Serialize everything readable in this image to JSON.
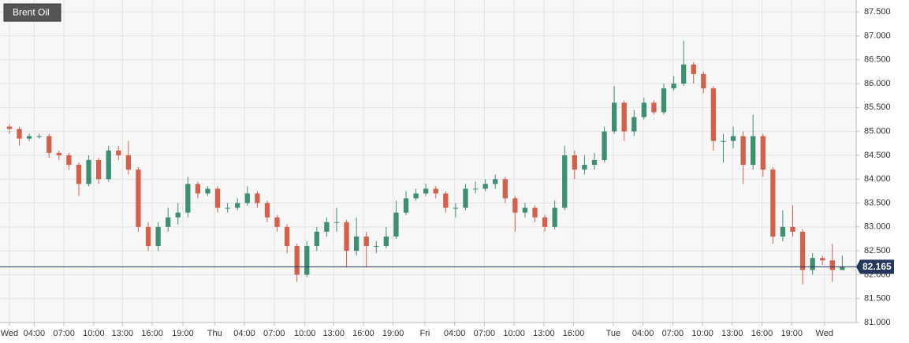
{
  "chart_data": {
    "type": "candlestick",
    "title": "Brent Oil",
    "x": [
      0,
      1,
      2,
      3,
      4,
      5,
      6,
      7,
      8,
      9,
      10,
      11,
      12,
      13,
      14,
      15,
      16,
      17,
      18,
      19,
      20,
      21,
      22,
      23,
      24,
      25,
      26,
      27,
      28,
      29,
      30,
      31,
      32,
      33,
      34,
      35,
      36,
      37,
      38,
      39,
      40,
      41,
      42,
      43,
      44,
      45,
      46,
      47,
      48,
      49,
      50,
      51,
      52,
      53,
      54,
      55,
      56,
      57,
      58,
      59,
      60,
      61,
      62,
      63,
      64,
      65,
      66,
      67,
      68,
      69,
      70,
      71,
      72,
      73,
      74,
      75,
      76,
      77,
      78,
      79,
      80,
      81,
      82,
      83,
      84
    ],
    "open": [
      85.1,
      85.05,
      84.85,
      84.9,
      84.9,
      84.55,
      84.5,
      84.3,
      83.9,
      84.4,
      84.0,
      84.6,
      84.5,
      84.2,
      83.0,
      82.6,
      83.0,
      83.2,
      83.3,
      83.9,
      83.7,
      83.8,
      83.4,
      83.4,
      83.5,
      83.7,
      83.5,
      83.2,
      83.0,
      82.6,
      82.0,
      82.6,
      82.9,
      83.1,
      83.1,
      82.5,
      82.8,
      82.6,
      82.6,
      82.8,
      83.3,
      83.6,
      83.7,
      83.8,
      83.7,
      83.4,
      83.4,
      83.8,
      83.8,
      83.9,
      84.0,
      83.6,
      83.3,
      83.4,
      83.2,
      83.0,
      83.4,
      84.5,
      84.2,
      84.3,
      84.4,
      85.0,
      85.6,
      85.0,
      85.3,
      85.6,
      85.4,
      85.9,
      86.0,
      86.4,
      86.2,
      85.9,
      84.8,
      84.8,
      84.9,
      84.3,
      84.9,
      84.2,
      82.8,
      83.0,
      82.9,
      82.1,
      82.35,
      82.3,
      82.1
    ],
    "high": [
      85.15,
      85.1,
      84.95,
      84.95,
      84.95,
      84.6,
      84.55,
      84.35,
      84.5,
      84.45,
      84.7,
      84.7,
      84.8,
      84.25,
      83.1,
      83.1,
      83.4,
      83.5,
      84.05,
      83.95,
      83.85,
      83.85,
      83.5,
      83.6,
      83.85,
      83.75,
      83.55,
      83.25,
      83.05,
      82.65,
      82.7,
      83.0,
      83.2,
      83.4,
      83.15,
      83.2,
      82.9,
      82.7,
      83.0,
      83.55,
      83.75,
      83.8,
      83.9,
      83.85,
      83.75,
      83.5,
      83.9,
      83.95,
      84.0,
      84.1,
      84.05,
      83.65,
      83.5,
      83.45,
      83.25,
      83.55,
      84.7,
      84.6,
      84.5,
      84.55,
      85.1,
      85.95,
      85.65,
      85.45,
      85.7,
      85.65,
      86.0,
      86.15,
      86.9,
      86.45,
      86.25,
      85.95,
      84.95,
      85.1,
      85.0,
      85.35,
      84.95,
      84.25,
      83.35,
      83.45,
      82.95,
      82.45,
      82.4,
      82.65,
      82.4
    ],
    "low": [
      84.95,
      84.7,
      84.8,
      84.85,
      84.45,
      84.4,
      84.2,
      83.65,
      83.85,
      83.9,
      83.95,
      84.4,
      84.1,
      82.9,
      82.5,
      82.5,
      82.9,
      83.05,
      83.2,
      83.6,
      83.65,
      83.3,
      83.3,
      83.35,
      83.45,
      83.4,
      83.1,
      82.9,
      82.45,
      81.85,
      81.95,
      82.5,
      82.8,
      82.9,
      82.15,
      82.4,
      82.15,
      82.45,
      82.55,
      82.75,
      83.25,
      83.55,
      83.65,
      83.6,
      83.3,
      83.2,
      83.35,
      83.7,
      83.75,
      83.8,
      83.5,
      82.9,
      83.2,
      83.1,
      82.9,
      82.95,
      83.35,
      84.0,
      84.1,
      84.2,
      84.35,
      84.95,
      84.8,
      84.9,
      85.25,
      85.35,
      85.35,
      85.85,
      85.95,
      86.0,
      85.8,
      84.6,
      84.35,
      84.65,
      83.9,
      84.2,
      84.05,
      82.65,
      82.7,
      82.8,
      81.8,
      82.0,
      82.2,
      81.85,
      82.1
    ],
    "close": [
      85.05,
      84.85,
      84.9,
      84.9,
      84.55,
      84.5,
      84.3,
      83.9,
      84.4,
      84.0,
      84.6,
      84.5,
      84.2,
      83.0,
      82.6,
      83.0,
      83.2,
      83.3,
      83.9,
      83.7,
      83.8,
      83.4,
      83.4,
      83.5,
      83.7,
      83.5,
      83.2,
      83.0,
      82.6,
      82.0,
      82.6,
      82.9,
      83.1,
      83.1,
      82.5,
      82.8,
      82.6,
      82.6,
      82.8,
      83.3,
      83.6,
      83.7,
      83.8,
      83.7,
      83.4,
      83.4,
      83.8,
      83.8,
      83.9,
      84.0,
      83.6,
      83.3,
      83.4,
      83.2,
      83.0,
      83.4,
      84.5,
      84.2,
      84.3,
      84.4,
      85.0,
      85.6,
      85.0,
      85.3,
      85.6,
      85.4,
      85.9,
      86.0,
      86.4,
      86.2,
      85.9,
      84.8,
      84.8,
      84.9,
      84.3,
      84.9,
      84.2,
      82.8,
      83.0,
      82.9,
      82.1,
      82.35,
      82.3,
      82.1,
      82.165
    ],
    "up_color": "#3d8f72",
    "down_color": "#d4604b",
    "last_price": 82.165,
    "last_price_color": "#23375a",
    "xlim": [
      -0.95,
      85.4
    ],
    "xticks": [
      {
        "value": 0,
        "label": "Wed"
      },
      {
        "value": 2.5,
        "label": "04:00"
      },
      {
        "value": 5.5,
        "label": "07:00"
      },
      {
        "value": 8.5,
        "label": "10:00"
      },
      {
        "value": 11.4,
        "label": "13:00"
      },
      {
        "value": 14.4,
        "label": "16:00"
      },
      {
        "value": 17.5,
        "label": "19:00"
      },
      {
        "value": 20.7,
        "label": "Thu"
      },
      {
        "value": 23.7,
        "label": "04:00"
      },
      {
        "value": 26.7,
        "label": "07:00"
      },
      {
        "value": 29.8,
        "label": "10:00"
      },
      {
        "value": 32.7,
        "label": "13:00"
      },
      {
        "value": 35.7,
        "label": "16:00"
      },
      {
        "value": 38.7,
        "label": "19:00"
      },
      {
        "value": 41.9,
        "label": "Fri"
      },
      {
        "value": 44.9,
        "label": "04:00"
      },
      {
        "value": 47.9,
        "label": "07:00"
      },
      {
        "value": 50.9,
        "label": "10:00"
      },
      {
        "value": 53.9,
        "label": "13:00"
      },
      {
        "value": 56.9,
        "label": "16:00"
      },
      {
        "value": 60.9,
        "label": "Tue"
      },
      {
        "value": 63.9,
        "label": "04:00"
      },
      {
        "value": 66.9,
        "label": "07:00"
      },
      {
        "value": 69.9,
        "label": "10:00"
      },
      {
        "value": 72.9,
        "label": "13:00"
      },
      {
        "value": 75.9,
        "label": "16:00"
      },
      {
        "value": 78.9,
        "label": "19:00"
      },
      {
        "value": 82.2,
        "label": "Wed"
      }
    ],
    "ylim": [
      81.0,
      87.75
    ],
    "yticks": [
      {
        "value": 81.0,
        "label": "81.000"
      },
      {
        "value": 81.5,
        "label": "81.500"
      },
      {
        "value": 82.0,
        "label": "82.000"
      },
      {
        "value": 82.5,
        "label": "82.500"
      },
      {
        "value": 83.0,
        "label": "83.000"
      },
      {
        "value": 83.5,
        "label": "83.500"
      },
      {
        "value": 84.0,
        "label": "84.000"
      },
      {
        "value": 84.5,
        "label": "84.500"
      },
      {
        "value": 85.0,
        "label": "85.000"
      },
      {
        "value": 85.5,
        "label": "85.500"
      },
      {
        "value": 86.0,
        "label": "86.000"
      },
      {
        "value": 86.5,
        "label": "86.500"
      },
      {
        "value": 87.0,
        "label": "87.000"
      },
      {
        "value": 87.5,
        "label": "87.500"
      }
    ],
    "grid": true
  }
}
